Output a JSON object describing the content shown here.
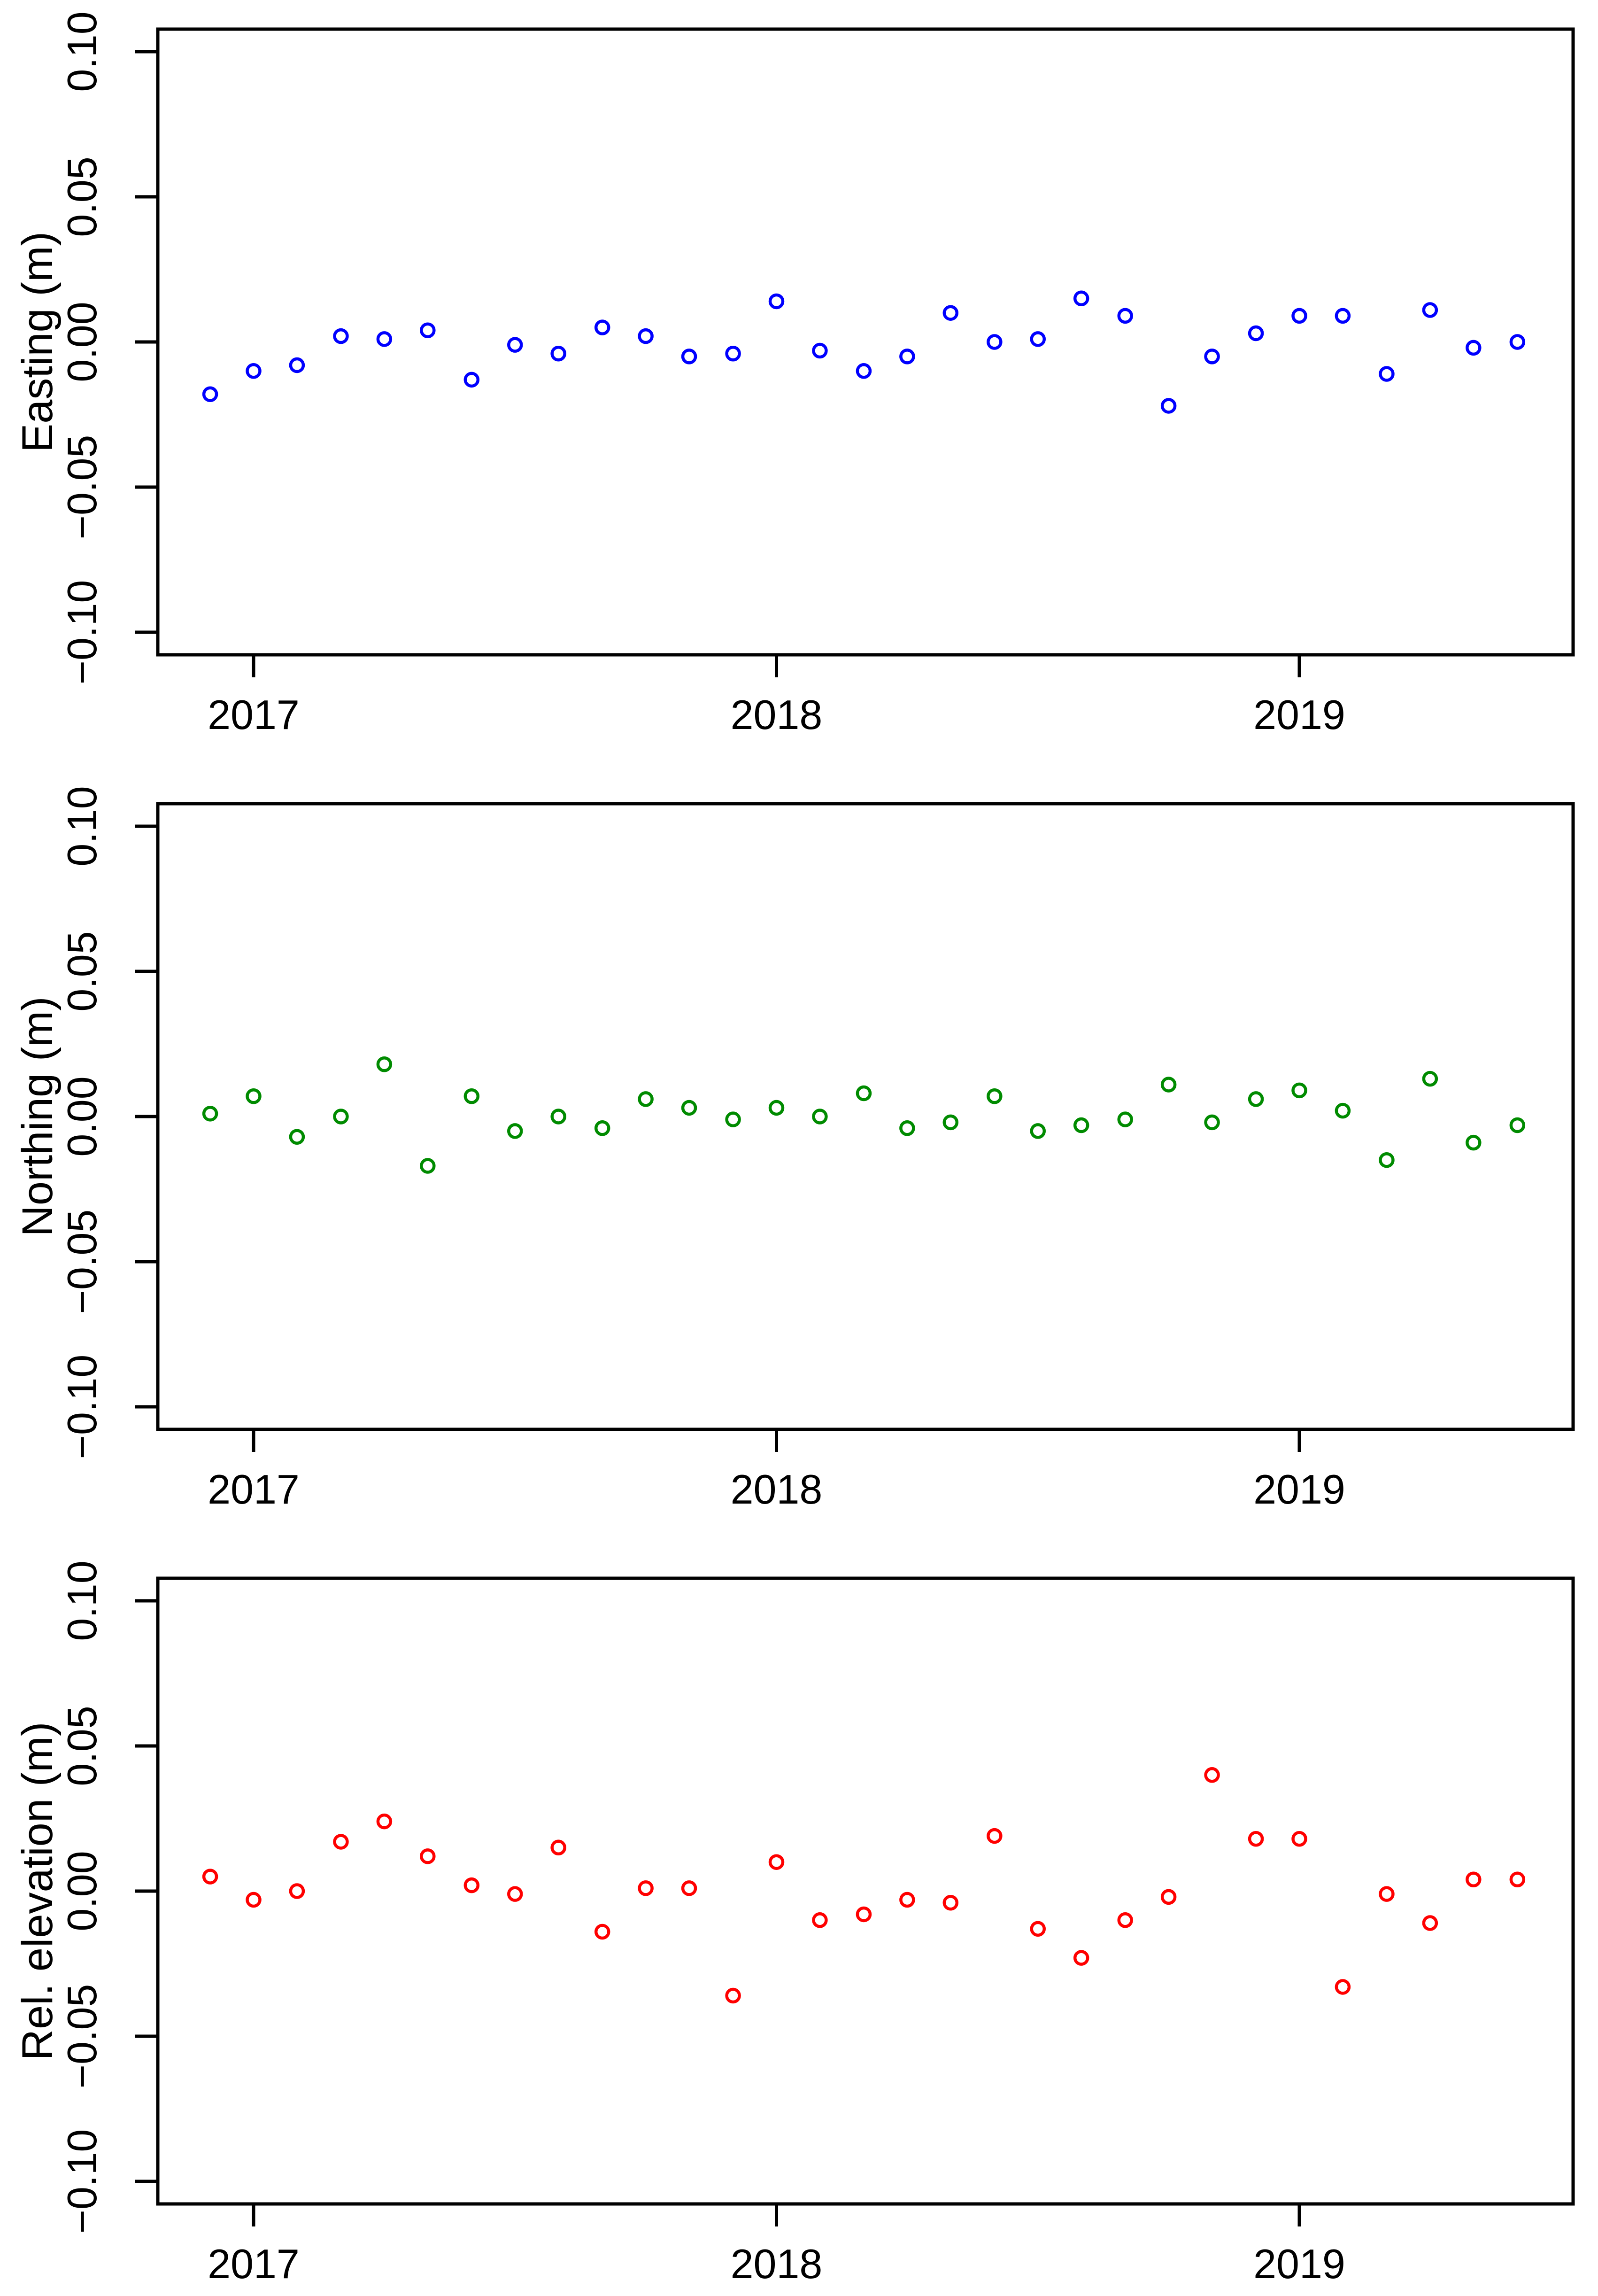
{
  "figure": {
    "background": "#ffffff",
    "text_color": "#000000"
  },
  "chart_data": [
    {
      "type": "scatter",
      "title": "",
      "xlabel": "",
      "ylabel": "Easting (m)",
      "point_color": "#0000ff",
      "marker": "open-circle",
      "grid": false,
      "legend": "none",
      "xlim": [
        2016.817,
        2019.517
      ],
      "ylim": [
        -0.1078,
        0.1078
      ],
      "x_ticks": {
        "values": [
          2017,
          2018,
          2019
        ],
        "labels": [
          "2017",
          "2018",
          "2019"
        ]
      },
      "y_ticks": {
        "values": [
          0.1,
          0.05,
          0.0,
          -0.05,
          -0.1
        ],
        "labels": [
          "0.10",
          "0.05",
          "0.00",
          "−0.05",
          "−0.10"
        ]
      },
      "x": [
        2016.917,
        2017.0,
        2017.083,
        2017.167,
        2017.25,
        2017.333,
        2017.417,
        2017.5,
        2017.583,
        2017.667,
        2017.75,
        2017.833,
        2017.917,
        2018.0,
        2018.083,
        2018.167,
        2018.25,
        2018.333,
        2018.417,
        2018.5,
        2018.583,
        2018.667,
        2018.75,
        2018.833,
        2018.917,
        2019.0,
        2019.083,
        2019.167,
        2019.25,
        2019.333,
        2019.417
      ],
      "y": [
        -0.018,
        -0.01,
        -0.008,
        0.002,
        0.001,
        0.004,
        -0.013,
        -0.001,
        -0.004,
        0.005,
        0.002,
        -0.005,
        -0.004,
        0.014,
        -0.003,
        -0.01,
        -0.005,
        0.01,
        0.0,
        0.001,
        0.015,
        0.009,
        -0.022,
        -0.005,
        0.003,
        0.009,
        0.009,
        -0.011,
        0.011,
        -0.002,
        0.0
      ]
    },
    {
      "type": "scatter",
      "title": "",
      "xlabel": "",
      "ylabel": "Northing (m)",
      "point_color": "#008b00",
      "marker": "open-circle",
      "grid": false,
      "legend": "none",
      "xlim": [
        2016.817,
        2019.517
      ],
      "ylim": [
        -0.1078,
        0.1078
      ],
      "x_ticks": {
        "values": [
          2017,
          2018,
          2019
        ],
        "labels": [
          "2017",
          "2018",
          "2019"
        ]
      },
      "y_ticks": {
        "values": [
          0.1,
          0.05,
          0.0,
          -0.05,
          -0.1
        ],
        "labels": [
          "0.10",
          "0.05",
          "0.00",
          "−0.05",
          "−0.10"
        ]
      },
      "x": [
        2016.917,
        2017.0,
        2017.083,
        2017.167,
        2017.25,
        2017.333,
        2017.417,
        2017.5,
        2017.583,
        2017.667,
        2017.75,
        2017.833,
        2017.917,
        2018.0,
        2018.083,
        2018.167,
        2018.25,
        2018.333,
        2018.417,
        2018.5,
        2018.583,
        2018.667,
        2018.75,
        2018.833,
        2018.917,
        2019.0,
        2019.083,
        2019.167,
        2019.25,
        2019.333,
        2019.417
      ],
      "y": [
        0.001,
        0.007,
        -0.007,
        0.0,
        0.018,
        -0.017,
        0.007,
        -0.005,
        0.0,
        -0.004,
        0.006,
        0.003,
        -0.001,
        0.003,
        0.0,
        0.008,
        -0.004,
        -0.002,
        0.007,
        -0.005,
        -0.003,
        -0.001,
        0.011,
        -0.002,
        0.006,
        0.009,
        0.002,
        -0.015,
        0.013,
        -0.009,
        -0.003
      ]
    },
    {
      "type": "scatter",
      "title": "",
      "xlabel": "",
      "ylabel": "Rel. elevation (m)",
      "point_color": "#ff0000",
      "marker": "open-circle",
      "grid": false,
      "legend": "none",
      "xlim": [
        2016.817,
        2019.517
      ],
      "ylim": [
        -0.1078,
        0.1078
      ],
      "x_ticks": {
        "values": [
          2017,
          2018,
          2019
        ],
        "labels": [
          "2017",
          "2018",
          "2019"
        ]
      },
      "y_ticks": {
        "values": [
          0.1,
          0.05,
          0.0,
          -0.05,
          -0.1
        ],
        "labels": [
          "0.10",
          "0.05",
          "0.00",
          "−0.05",
          "−0.10"
        ]
      },
      "x": [
        2016.917,
        2017.0,
        2017.083,
        2017.167,
        2017.25,
        2017.333,
        2017.417,
        2017.5,
        2017.583,
        2017.667,
        2017.75,
        2017.833,
        2017.917,
        2018.0,
        2018.083,
        2018.167,
        2018.25,
        2018.333,
        2018.417,
        2018.5,
        2018.583,
        2018.667,
        2018.75,
        2018.833,
        2018.917,
        2019.0,
        2019.083,
        2019.167,
        2019.25,
        2019.333,
        2019.417
      ],
      "y": [
        0.005,
        -0.003,
        0.0,
        0.017,
        0.024,
        0.012,
        0.002,
        -0.001,
        0.015,
        -0.014,
        0.001,
        0.001,
        -0.036,
        0.01,
        -0.01,
        -0.008,
        -0.003,
        -0.004,
        0.019,
        -0.013,
        -0.023,
        -0.01,
        -0.002,
        0.04,
        0.018,
        0.018,
        -0.033,
        -0.001,
        -0.011,
        0.004,
        0.004
      ]
    }
  ]
}
